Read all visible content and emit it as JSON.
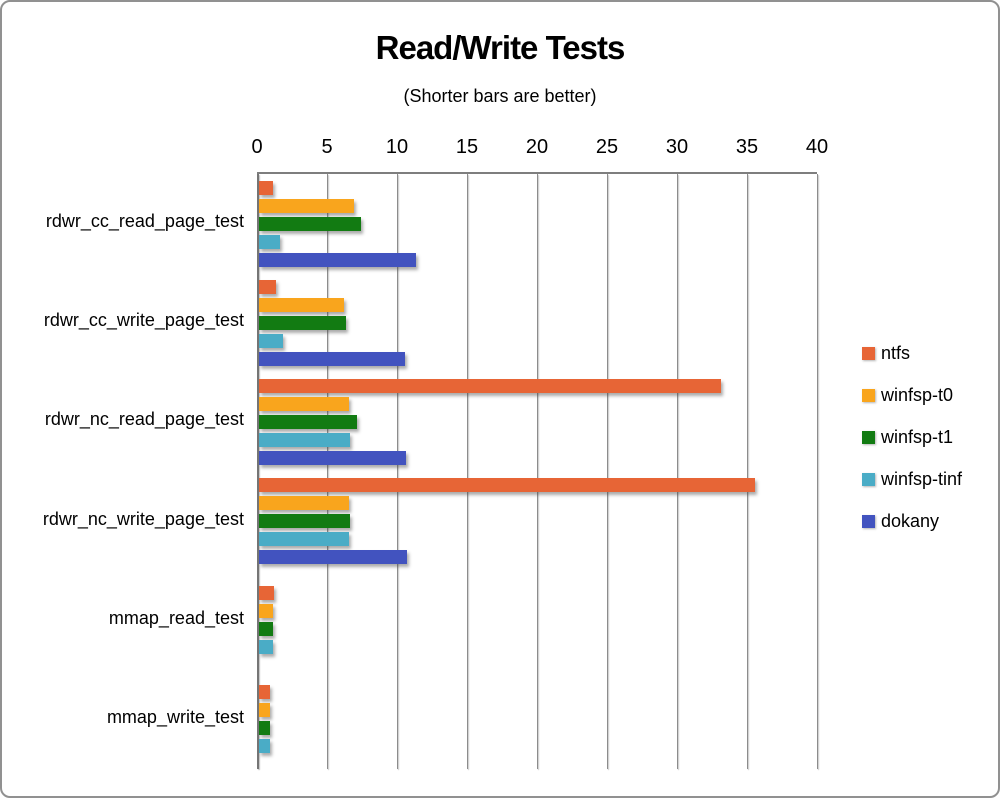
{
  "chart_data": {
    "type": "bar",
    "orientation": "horizontal",
    "title": "Read/Write Tests",
    "subtitle": "(Shorter bars are better)",
    "value_axis": {
      "position": "top",
      "min": 0,
      "max": 40,
      "tick_step": 5,
      "ticks": [
        0,
        5,
        10,
        15,
        20,
        25,
        30,
        35,
        40
      ]
    },
    "grid": true,
    "legend_position": "right",
    "categories": [
      "rdwr_cc_read_page_test",
      "rdwr_cc_write_page_test",
      "rdwr_nc_read_page_test",
      "rdwr_nc_write_page_test",
      "mmap_read_test",
      "mmap_write_test"
    ],
    "series": [
      {
        "name": "ntfs",
        "color": "#E76536",
        "values": [
          1.0,
          1.2,
          33.0,
          35.4,
          1.1,
          0.8
        ]
      },
      {
        "name": "winfsp-t0",
        "color": "#F9A51D",
        "values": [
          6.8,
          6.1,
          6.4,
          6.4,
          1.0,
          0.8
        ]
      },
      {
        "name": "winfsp-t1",
        "color": "#127B12",
        "values": [
          7.3,
          6.2,
          7.0,
          6.5,
          1.0,
          0.8
        ]
      },
      {
        "name": "winfsp-tinf",
        "color": "#4AACC6",
        "values": [
          1.5,
          1.7,
          6.5,
          6.4,
          1.0,
          0.8
        ]
      },
      {
        "name": "dokany",
        "color": "#4253BF",
        "values": [
          11.2,
          10.4,
          10.5,
          10.6,
          0,
          0
        ]
      }
    ]
  },
  "colors": {
    "grid_line": "#8c8c8c",
    "axis_line": "#757575",
    "frame_border": "#919191",
    "background": "#ffffff",
    "text": "#000000"
  }
}
